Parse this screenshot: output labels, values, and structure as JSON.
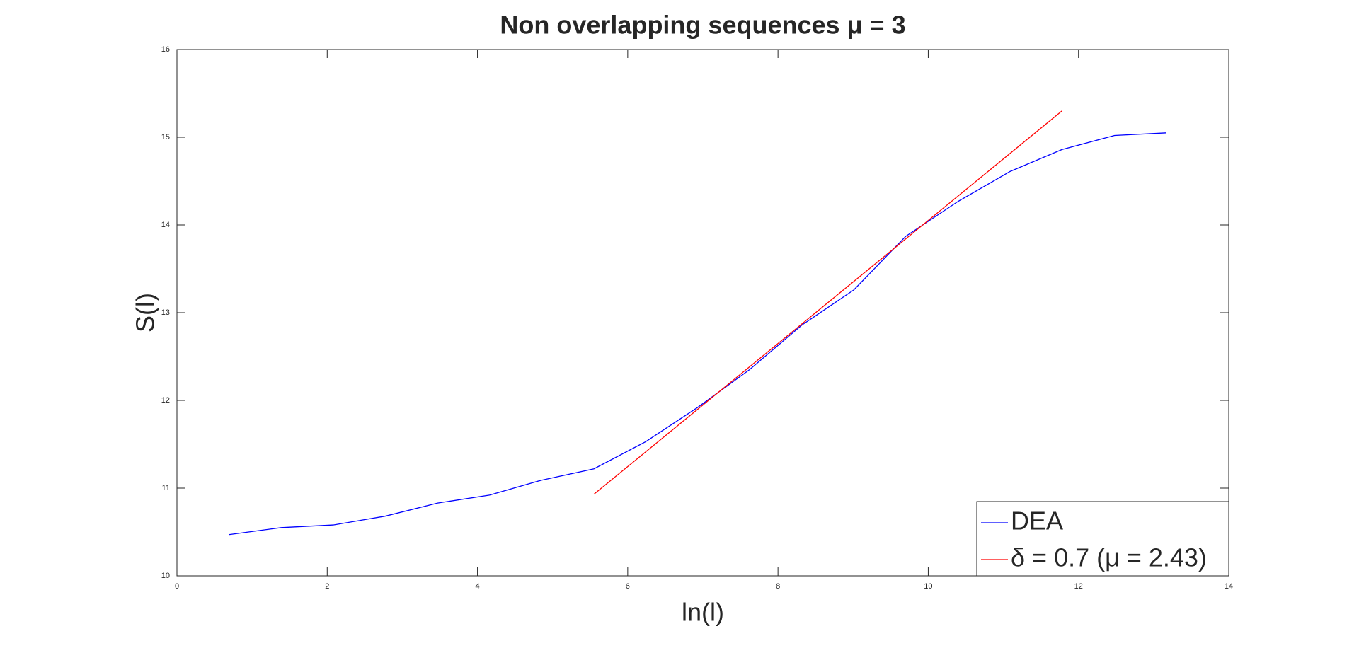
{
  "chart_data": {
    "type": "line",
    "title": "Non overlapping sequences μ = 3",
    "x_label": "ln(l)",
    "y_label": "S(l)",
    "xlim": [
      0,
      14
    ],
    "xticks": [
      0,
      2,
      4,
      6,
      8,
      10,
      12,
      14
    ],
    "ylim": [
      10,
      16
    ],
    "yticks": [
      10,
      11,
      12,
      13,
      14,
      15,
      16
    ],
    "legend": "lower right",
    "series": [
      {
        "name": "DEA",
        "color": "#0000ff",
        "x": [
          0.69,
          1.39,
          2.08,
          2.77,
          3.47,
          4.16,
          4.85,
          5.55,
          6.24,
          6.93,
          7.62,
          8.32,
          9.01,
          9.7,
          10.4,
          11.09,
          11.78,
          12.48,
          13.17
        ],
        "values": [
          10.47,
          10.55,
          10.58,
          10.68,
          10.83,
          10.92,
          11.09,
          11.22,
          11.53,
          11.92,
          12.35,
          12.86,
          13.26,
          13.87,
          14.27,
          14.61,
          14.86,
          15.02,
          15.05
        ]
      },
      {
        "name": "δ = 0.7 (μ = 2.43)",
        "color": "#ff0000",
        "x": [
          5.55,
          11.78
        ],
        "values": [
          10.93,
          15.3
        ]
      }
    ]
  }
}
